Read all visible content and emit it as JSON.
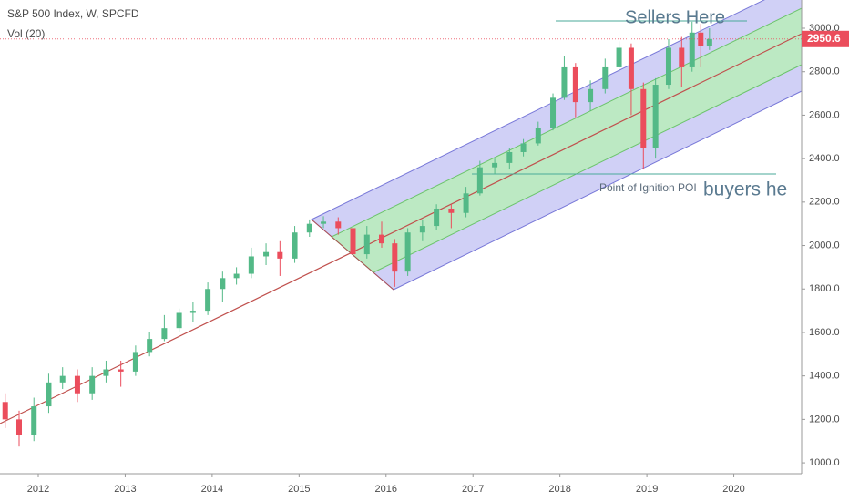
{
  "chart_data": {
    "type": "candlestick",
    "title": "S&P 500 Index, W, SPCFD",
    "subtitle": "Vol (20)",
    "annotations": [
      "Sellers Here",
      "Point of Ignition POI",
      "buyers he"
    ],
    "last_price": 2950.6,
    "up_color": "#53b987",
    "down_color": "#eb4d5c",
    "x": [
      2011.62,
      2011.78,
      2011.95,
      2012.12,
      2012.28,
      2012.45,
      2012.62,
      2012.78,
      2012.95,
      2013.12,
      2013.28,
      2013.45,
      2013.62,
      2013.78,
      2013.95,
      2014.12,
      2014.28,
      2014.45,
      2014.62,
      2014.78,
      2014.95,
      2015.12,
      2015.28,
      2015.45,
      2015.62,
      2015.78,
      2015.95,
      2016.1,
      2016.25,
      2016.42,
      2016.58,
      2016.75,
      2016.92,
      2017.08,
      2017.25,
      2017.42,
      2017.58,
      2017.75,
      2017.92,
      2018.05,
      2018.18,
      2018.35,
      2018.52,
      2018.68,
      2018.82,
      2018.96,
      2019.1,
      2019.25,
      2019.4,
      2019.52,
      2019.62,
      2019.72
    ],
    "open": [
      1280,
      1200,
      1130,
      1260,
      1370,
      1400,
      1320,
      1400,
      1430,
      1420,
      1510,
      1570,
      1620,
      1690,
      1700,
      1800,
      1850,
      1870,
      1950,
      1970,
      1940,
      2060,
      2100,
      2110,
      2080,
      1960,
      2050,
      2010,
      1880,
      2060,
      2090,
      2170,
      2150,
      2240,
      2360,
      2380,
      2430,
      2470,
      2540,
      2680,
      2820,
      2660,
      2720,
      2820,
      2910,
      2720,
      2450,
      2740,
      2910,
      2820,
      2980,
      2920
    ],
    "high": [
      1320,
      1240,
      1300,
      1410,
      1440,
      1430,
      1440,
      1470,
      1470,
      1540,
      1600,
      1680,
      1710,
      1740,
      1830,
      1880,
      1900,
      1990,
      2010,
      2020,
      2090,
      2120,
      2135,
      2130,
      2100,
      2090,
      2110,
      2030,
      2080,
      2120,
      2190,
      2190,
      2270,
      2390,
      2400,
      2450,
      2490,
      2570,
      2700,
      2870,
      2840,
      2760,
      2860,
      2940,
      2930,
      2750,
      2770,
      2950,
      2960,
      3030,
      3020,
      3000
    ],
    "low": [
      1160,
      1075,
      1100,
      1230,
      1340,
      1280,
      1290,
      1370,
      1350,
      1400,
      1490,
      1560,
      1600,
      1650,
      1680,
      1740,
      1820,
      1850,
      1910,
      1860,
      1920,
      2040,
      2080,
      2050,
      1870,
      1940,
      1990,
      1810,
      1860,
      2020,
      2070,
      2080,
      2130,
      2230,
      2330,
      2350,
      2410,
      2460,
      2530,
      2670,
      2590,
      2620,
      2700,
      2800,
      2600,
      2350,
      2400,
      2720,
      2730,
      2800,
      2820,
      2900
    ],
    "close": [
      1200,
      1130,
      1260,
      1370,
      1400,
      1320,
      1400,
      1430,
      1420,
      1510,
      1570,
      1620,
      1690,
      1700,
      1800,
      1850,
      1870,
      1950,
      1970,
      1940,
      2060,
      2100,
      2110,
      2080,
      1960,
      2050,
      2010,
      1880,
      2060,
      2090,
      2170,
      2150,
      2240,
      2360,
      2380,
      2430,
      2470,
      2540,
      2680,
      2820,
      2660,
      2720,
      2820,
      2910,
      2720,
      2450,
      2740,
      2910,
      2820,
      2980,
      2920,
      2950.6
    ],
    "xlim": [
      2011.56,
      2020.78
    ],
    "xticks": [
      2012,
      2013,
      2014,
      2015,
      2016,
      2017,
      2018,
      2019,
      2020
    ],
    "ylim": [
      950,
      3130
    ],
    "yticks": [
      {
        "value": 1000,
        "label": "1000.0"
      },
      {
        "value": 1200,
        "label": "1200.0"
      },
      {
        "value": 1400,
        "label": "1400.0"
      },
      {
        "value": 1600,
        "label": "1600.0"
      },
      {
        "value": 1800,
        "label": "1800.0"
      },
      {
        "value": 2000,
        "label": "2000.0"
      },
      {
        "value": 2200,
        "label": "2200.0"
      },
      {
        "value": 2400,
        "label": "2400.0"
      },
      {
        "value": 2600,
        "label": "2600.0"
      },
      {
        "value": 2800,
        "label": "2800.0"
      },
      {
        "value": 3000,
        "label": "3000.0"
      }
    ]
  }
}
